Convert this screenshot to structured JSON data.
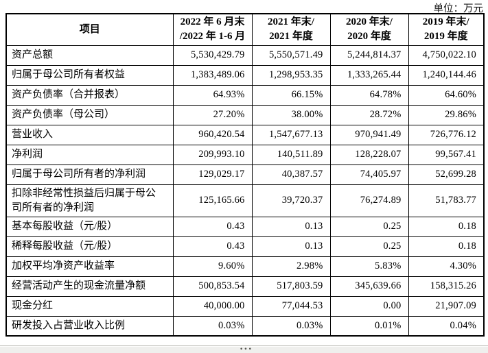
{
  "unit_label": "单位：万元",
  "table": {
    "columns": [
      "项目",
      "2022 年 6 月末\n/2022 年 1-6 月",
      "2021 年末/\n2021 年度",
      "2020 年末/\n2020 年度",
      "2019 年末/\n2019 年度"
    ],
    "rows": [
      {
        "label": "资产总额",
        "values": [
          "5,530,429.79",
          "5,550,571.49",
          "5,244,814.37",
          "4,750,022.10"
        ]
      },
      {
        "label": "归属于母公司所有者权益",
        "values": [
          "1,383,489.06",
          "1,298,953.35",
          "1,333,265.44",
          "1,240,144.46"
        ]
      },
      {
        "label": "资产负债率（合并报表）",
        "values": [
          "64.93%",
          "66.15%",
          "64.78%",
          "64.60%"
        ]
      },
      {
        "label": "资产负债率（母公司）",
        "values": [
          "27.20%",
          "38.00%",
          "28.72%",
          "29.86%"
        ]
      },
      {
        "label": "营业收入",
        "values": [
          "960,420.54",
          "1,547,677.13",
          "970,941.49",
          "726,776.12"
        ]
      },
      {
        "label": "净利润",
        "values": [
          "209,993.10",
          "140,511.89",
          "128,228.07",
          "99,567.41"
        ]
      },
      {
        "label": "归属于母公司所有者的净利润",
        "values": [
          "129,029.17",
          "40,387.57",
          "74,405.97",
          "52,699.28"
        ]
      },
      {
        "label": "扣除非经常性损益后归属于母公\n司所有者的净利润",
        "values": [
          "125,165.66",
          "39,720.37",
          "76,274.89",
          "51,783.77"
        ]
      },
      {
        "label": "基本每股收益（元/股）",
        "values": [
          "0.43",
          "0.13",
          "0.25",
          "0.18"
        ]
      },
      {
        "label": "稀释每股收益（元/股）",
        "values": [
          "0.43",
          "0.13",
          "0.25",
          "0.18"
        ]
      },
      {
        "label": "加权平均净资产收益率",
        "values": [
          "9.60%",
          "2.98%",
          "5.83%",
          "4.30%"
        ]
      },
      {
        "label": "经营活动产生的现金流量净额",
        "values": [
          "500,853.54",
          "517,803.59",
          "345,639.66",
          "158,315.26"
        ]
      },
      {
        "label": "现金分红",
        "values": [
          "40,000.00",
          "77,044.53",
          "0.00",
          "21,907.09"
        ]
      },
      {
        "label": "研发投入占营业收入比例",
        "values": [
          "0.03%",
          "0.03%",
          "0.01%",
          "0.04%"
        ]
      }
    ]
  },
  "scrollbar": {
    "grip_glyph": "•••"
  }
}
